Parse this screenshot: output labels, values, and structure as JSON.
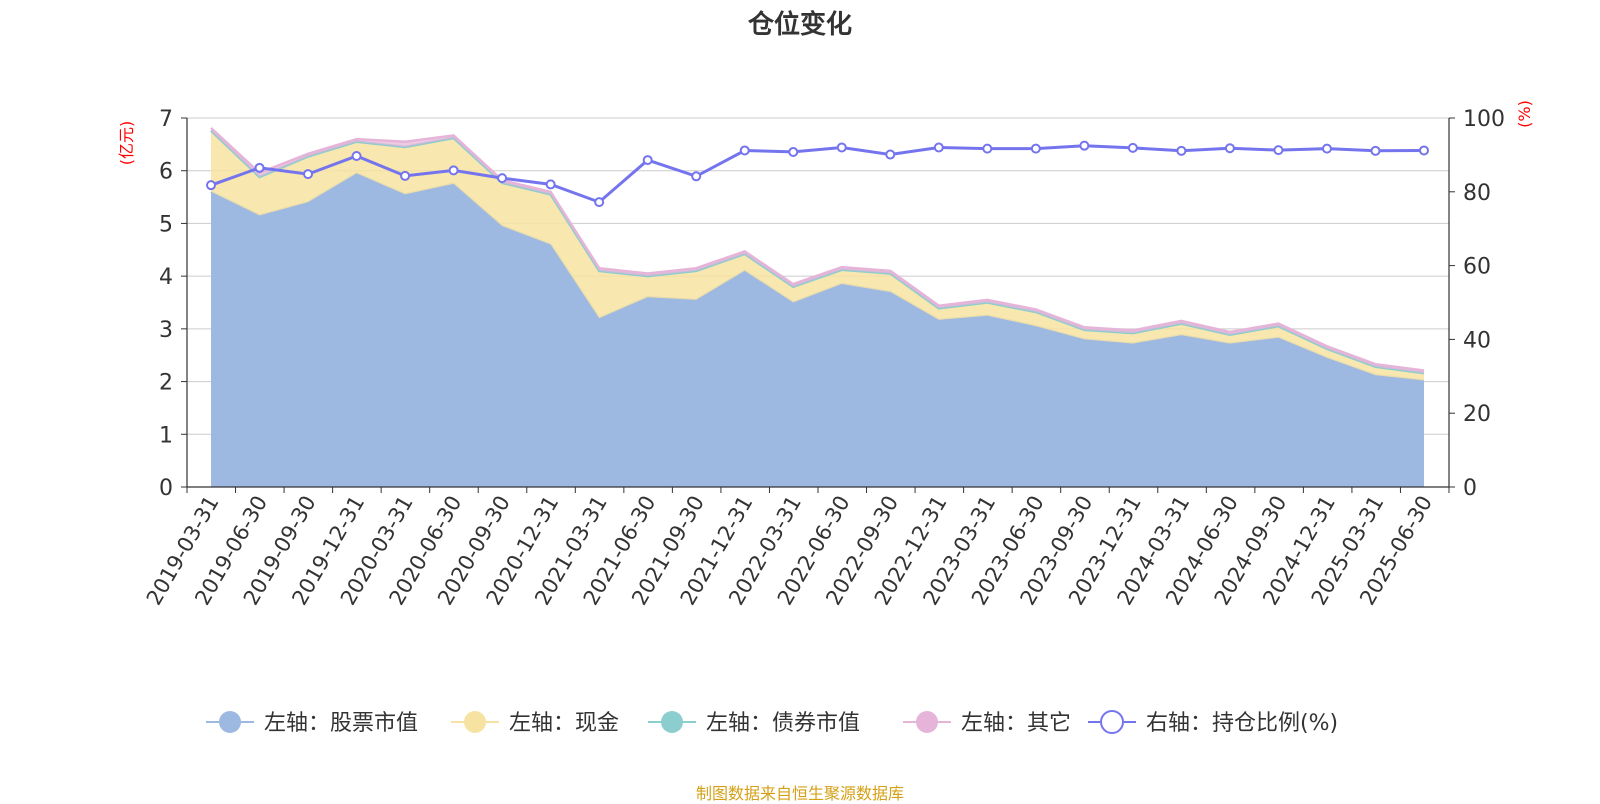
{
  "chart_data": {
    "type": "area",
    "title": "仓位变化",
    "source_text": "制图数据来自恒生聚源数据库",
    "categories": [
      "2019-03-31",
      "2019-06-30",
      "2019-09-30",
      "2019-12-31",
      "2020-03-31",
      "2020-06-30",
      "2020-09-30",
      "2020-12-31",
      "2021-03-31",
      "2021-06-30",
      "2021-09-30",
      "2021-12-31",
      "2022-03-31",
      "2022-06-30",
      "2022-09-30",
      "2022-12-31",
      "2023-03-31",
      "2023-06-30",
      "2023-09-30",
      "2023-12-31",
      "2024-03-31",
      "2024-06-30",
      "2024-09-30",
      "2024-12-31",
      "2025-03-31",
      "2025-06-30"
    ],
    "left_axis": {
      "unit": "(亿元)",
      "ylim": [
        0,
        7
      ],
      "ticks": [
        0,
        1,
        2,
        3,
        4,
        5,
        6,
        7
      ]
    },
    "right_axis": {
      "unit": "(%)",
      "ylim": [
        0,
        100
      ],
      "ticks": [
        0,
        20,
        40,
        60,
        80,
        100
      ]
    },
    "grid": true,
    "legend_position": "bottom",
    "series": [
      {
        "name": "左轴：股票市值",
        "axis": "left",
        "stack": true,
        "color": "#9db8e1",
        "values": [
          5.6,
          5.15,
          5.4,
          5.95,
          5.55,
          5.75,
          4.95,
          4.6,
          3.2,
          3.6,
          3.55,
          4.1,
          3.5,
          3.85,
          3.7,
          3.17,
          3.25,
          3.05,
          2.8,
          2.72,
          2.88,
          2.72,
          2.83,
          2.45,
          2.12,
          2.02
        ]
      },
      {
        "name": "左轴：现金",
        "axis": "left",
        "stack": true,
        "color": "#f7e3a1",
        "values": [
          1.16,
          0.73,
          0.87,
          0.6,
          0.9,
          0.87,
          0.82,
          0.95,
          0.9,
          0.4,
          0.55,
          0.32,
          0.3,
          0.27,
          0.35,
          0.22,
          0.25,
          0.27,
          0.18,
          0.2,
          0.22,
          0.17,
          0.22,
          0.17,
          0.16,
          0.14
        ]
      },
      {
        "name": "左轴：债券市值",
        "axis": "left",
        "stack": true,
        "color": "#8ccdd0",
        "values": [
          0,
          0,
          0,
          0,
          0,
          0,
          0,
          0,
          0,
          0,
          0,
          0,
          0,
          0,
          0,
          0,
          0,
          0,
          0,
          0,
          0,
          0,
          0,
          0,
          0,
          0
        ]
      },
      {
        "name": "左轴：其它",
        "axis": "left",
        "stack": true,
        "color": "#e6b4d9",
        "values": [
          0.05,
          0.08,
          0.05,
          0.05,
          0.1,
          0.05,
          0.05,
          0.05,
          0.05,
          0.05,
          0.05,
          0.05,
          0.05,
          0.05,
          0.05,
          0.05,
          0.05,
          0.05,
          0.05,
          0.05,
          0.05,
          0.05,
          0.05,
          0.05,
          0.05,
          0.05
        ]
      },
      {
        "name": "右轴：持仓比例(%)",
        "axis": "right",
        "type": "line",
        "color": "#7474ee",
        "values": [
          81.8,
          86.5,
          84.8,
          89.7,
          84.3,
          85.8,
          83.7,
          82.0,
          77.2,
          88.6,
          84.2,
          91.2,
          90.8,
          92.0,
          90.1,
          92.0,
          91.7,
          91.7,
          92.5,
          91.9,
          91.1,
          91.8,
          91.3,
          91.7,
          91.1,
          91.2
        ]
      }
    ]
  }
}
